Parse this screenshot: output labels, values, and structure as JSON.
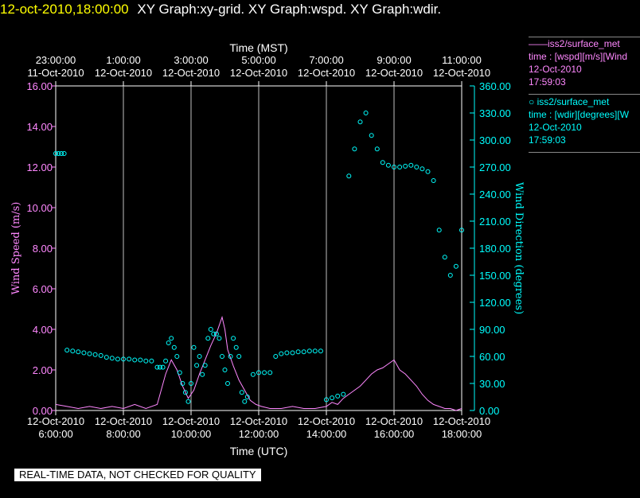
{
  "header": {
    "timestamp": "12-oct-2010,18:00:00",
    "graphs": "XY Graph:xy-grid.  XY Graph:wspd.  XY Graph:wdir."
  },
  "legend": {
    "wspd": {
      "line1": "——iss2/surface_met",
      "line2": "time : [wspd][m/s][Wind",
      "line3": "12-Oct-2010",
      "line4": "17:59:03"
    },
    "wdir": {
      "line1": "○ iss2/surface_met",
      "line2": "time : [wdir][degrees][W",
      "line3": "12-Oct-2010",
      "line4": "17:59:03"
    }
  },
  "footer": {
    "qc_text": "REAL-TIME DATA, NOT CHECKED FOR QUALITY"
  },
  "colors": {
    "wspd": "#ff88ff",
    "wdir": "#00ffff",
    "grid": "#c0c0c0",
    "header_time": "#ffff00"
  },
  "chart_data": {
    "type": "line",
    "title": "",
    "xlabel": "Time (UTC)",
    "x2label": "Time (MST)",
    "ylabel": "Wind Speed (m/s)",
    "y2label": "Wind Direction (degrees)",
    "xlim": [
      "2010-10-12 06:00",
      "2010-10-12 18:00"
    ],
    "ylim": [
      0,
      16
    ],
    "y2lim": [
      0,
      360
    ],
    "grid": true,
    "x_ticks": [
      {
        "t": "2010-10-12 06:00",
        "date": "12-Oct-2010",
        "time": "6:00:00"
      },
      {
        "t": "2010-10-12 08:00",
        "date": "12-Oct-2010",
        "time": "8:00:00"
      },
      {
        "t": "2010-10-12 10:00",
        "date": "12-Oct-2010",
        "time": "10:00:00"
      },
      {
        "t": "2010-10-12 12:00",
        "date": "12-Oct-2010",
        "time": "12:00:00"
      },
      {
        "t": "2010-10-12 14:00",
        "date": "12-Oct-2010",
        "time": "14:00:00"
      },
      {
        "t": "2010-10-12 16:00",
        "date": "12-Oct-2010",
        "time": "16:00:00"
      },
      {
        "t": "2010-10-12 18:00",
        "date": "12-Oct-2010",
        "time": "18:00:00"
      }
    ],
    "x2_ticks": [
      {
        "t": "2010-10-12 06:00",
        "time": "23:00:00",
        "date": "11-Oct-2010"
      },
      {
        "t": "2010-10-12 08:00",
        "time": "1:00:00",
        "date": "12-Oct-2010"
      },
      {
        "t": "2010-10-12 10:00",
        "time": "3:00:00",
        "date": "12-Oct-2010"
      },
      {
        "t": "2010-10-12 12:00",
        "time": "5:00:00",
        "date": "12-Oct-2010"
      },
      {
        "t": "2010-10-12 14:00",
        "time": "7:00:00",
        "date": "12-Oct-2010"
      },
      {
        "t": "2010-10-12 16:00",
        "time": "9:00:00",
        "date": "12-Oct-2010"
      },
      {
        "t": "2010-10-12 18:00",
        "time": "11:00:00",
        "date": "12-Oct-2010"
      }
    ],
    "y_ticks": [
      "0.00",
      "2.00",
      "4.00",
      "6.00",
      "8.00",
      "10.00",
      "12.00",
      "14.00",
      "16.00"
    ],
    "y2_ticks": [
      "0.00",
      "30.00",
      "60.00",
      "90.00",
      "120.00",
      "150.00",
      "180.00",
      "210.00",
      "240.00",
      "270.00",
      "300.00",
      "330.00",
      "360.00"
    ],
    "series": [
      {
        "name": "iss2/surface_met time : [wspd][m/s]",
        "axis": "left",
        "style": "line",
        "x": [
          "06:00",
          "06:20",
          "06:40",
          "07:00",
          "07:20",
          "07:40",
          "08:00",
          "08:20",
          "08:40",
          "09:00",
          "09:15",
          "09:25",
          "09:35",
          "09:45",
          "09:55",
          "10:05",
          "10:15",
          "10:25",
          "10:35",
          "10:45",
          "10:55",
          "11:00",
          "11:05",
          "11:15",
          "11:25",
          "11:35",
          "11:45",
          "11:55",
          "12:05",
          "12:20",
          "12:40",
          "13:00",
          "13:20",
          "13:40",
          "14:00",
          "14:10",
          "14:20",
          "14:30",
          "14:40",
          "14:50",
          "15:00",
          "15:10",
          "15:20",
          "15:30",
          "15:40",
          "15:50",
          "16:00",
          "16:10",
          "16:20",
          "16:30",
          "16:40",
          "16:50",
          "17:00",
          "17:10",
          "17:20",
          "17:30",
          "17:40",
          "17:50",
          "18:00"
        ],
        "y": [
          0.3,
          0.2,
          0.1,
          0.2,
          0.1,
          0.2,
          0.1,
          0.3,
          0.1,
          0.3,
          1.8,
          2.5,
          2.0,
          1.2,
          0.6,
          1.0,
          1.8,
          2.5,
          3.2,
          3.8,
          4.6,
          4.0,
          3.0,
          2.2,
          1.5,
          1.0,
          0.5,
          0.3,
          0.2,
          0.1,
          0.1,
          0.2,
          0.1,
          0.1,
          0.2,
          0.4,
          0.3,
          0.6,
          0.8,
          1.0,
          1.2,
          1.5,
          1.8,
          2.0,
          2.1,
          2.3,
          2.5,
          2.0,
          1.8,
          1.5,
          1.2,
          0.8,
          0.5,
          0.3,
          0.2,
          0.1,
          0.1,
          0.0,
          0.1
        ]
      },
      {
        "name": "iss2/surface_met time : [wdir][degrees]",
        "axis": "right",
        "style": "circles",
        "x": [
          "06:00",
          "06:05",
          "06:10",
          "06:15",
          "06:20",
          "06:30",
          "06:40",
          "06:50",
          "07:00",
          "07:10",
          "07:20",
          "07:30",
          "07:40",
          "07:50",
          "08:00",
          "08:10",
          "08:20",
          "08:30",
          "08:40",
          "08:50",
          "09:00",
          "09:05",
          "09:10",
          "09:15",
          "09:20",
          "09:25",
          "09:30",
          "09:35",
          "09:40",
          "09:45",
          "09:50",
          "09:55",
          "10:00",
          "10:05",
          "10:10",
          "10:15",
          "10:20",
          "10:25",
          "10:30",
          "10:35",
          "10:40",
          "10:45",
          "10:50",
          "10:55",
          "11:00",
          "11:05",
          "11:10",
          "11:15",
          "11:20",
          "11:25",
          "11:30",
          "11:35",
          "11:40",
          "11:50",
          "12:00",
          "12:10",
          "12:20",
          "12:30",
          "12:40",
          "12:50",
          "13:00",
          "13:10",
          "13:20",
          "13:30",
          "13:40",
          "13:50",
          "14:00",
          "14:10",
          "14:20",
          "14:30",
          "14:40",
          "14:50",
          "15:00",
          "15:10",
          "15:20",
          "15:30",
          "15:40",
          "15:50",
          "16:00",
          "16:10",
          "16:20",
          "16:30",
          "16:40",
          "16:50",
          "17:00",
          "17:10",
          "17:20",
          "17:30",
          "17:40",
          "17:50",
          "18:00"
        ],
        "y": [
          285,
          285,
          285,
          285,
          67,
          66,
          65,
          64,
          63,
          62,
          61,
          59,
          58,
          57,
          57,
          57,
          56,
          56,
          55,
          55,
          48,
          48,
          48,
          55,
          75,
          80,
          70,
          60,
          42,
          30,
          20,
          10,
          30,
          70,
          50,
          60,
          40,
          50,
          80,
          90,
          85,
          85,
          80,
          60,
          45,
          30,
          60,
          80,
          70,
          60,
          20,
          10,
          15,
          40,
          42,
          42,
          42,
          60,
          63,
          64,
          64,
          65,
          65,
          66,
          66,
          66,
          12,
          14,
          16,
          18,
          260,
          290,
          320,
          330,
          305,
          290,
          275,
          272,
          270,
          270,
          271,
          272,
          270,
          268,
          265,
          255,
          200,
          170,
          150,
          160,
          200
        ]
      }
    ]
  }
}
